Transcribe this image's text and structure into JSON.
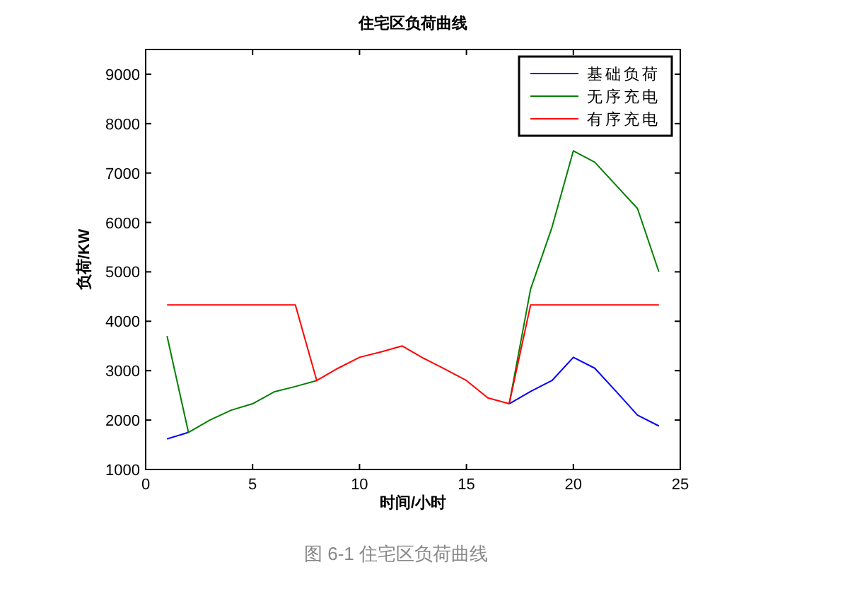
{
  "chart_data": {
    "type": "line",
    "title": "住宅区负荷曲线",
    "xlabel": "时间/小时",
    "ylabel": "负荷/KW",
    "x": [
      1,
      2,
      3,
      4,
      5,
      6,
      7,
      8,
      9,
      10,
      11,
      12,
      13,
      14,
      15,
      16,
      17,
      18,
      19,
      20,
      21,
      22,
      23,
      24
    ],
    "series": [
      {
        "name": "基础负荷",
        "color": "#0000ff",
        "values": [
          1620,
          1750,
          null,
          null,
          null,
          null,
          null,
          null,
          null,
          null,
          null,
          null,
          null,
          null,
          null,
          null,
          2330,
          2580,
          2800,
          3270,
          3050,
          2580,
          2100,
          1880
        ]
      },
      {
        "name": "无序充电",
        "color": "#008000",
        "values": [
          3700,
          1750,
          2000,
          2200,
          2330,
          2570,
          2680,
          2800,
          null,
          null,
          null,
          null,
          null,
          null,
          null,
          null,
          2330,
          4650,
          5900,
          7450,
          7220,
          6750,
          6280,
          5000
        ]
      },
      {
        "name": "有序充电",
        "color": "#ff0000",
        "values": [
          4330,
          4330,
          4330,
          4330,
          4330,
          4330,
          4330,
          2800,
          3050,
          3270,
          3380,
          3500,
          3250,
          3030,
          2800,
          2450,
          2330,
          4330,
          4330,
          4330,
          4330,
          4330,
          4330,
          4330
        ]
      }
    ],
    "xlim": [
      0,
      25
    ],
    "xticks": [
      0,
      5,
      10,
      15,
      20,
      25
    ],
    "ylim": [
      1000,
      9500
    ],
    "yticks": [
      1000,
      2000,
      3000,
      4000,
      5000,
      6000,
      7000,
      8000,
      9000
    ],
    "grid": false,
    "legend": "top right",
    "marker": "none",
    "line_style": "solid",
    "annotations": [
      "图 6-1   住宅区负荷曲线"
    ]
  }
}
